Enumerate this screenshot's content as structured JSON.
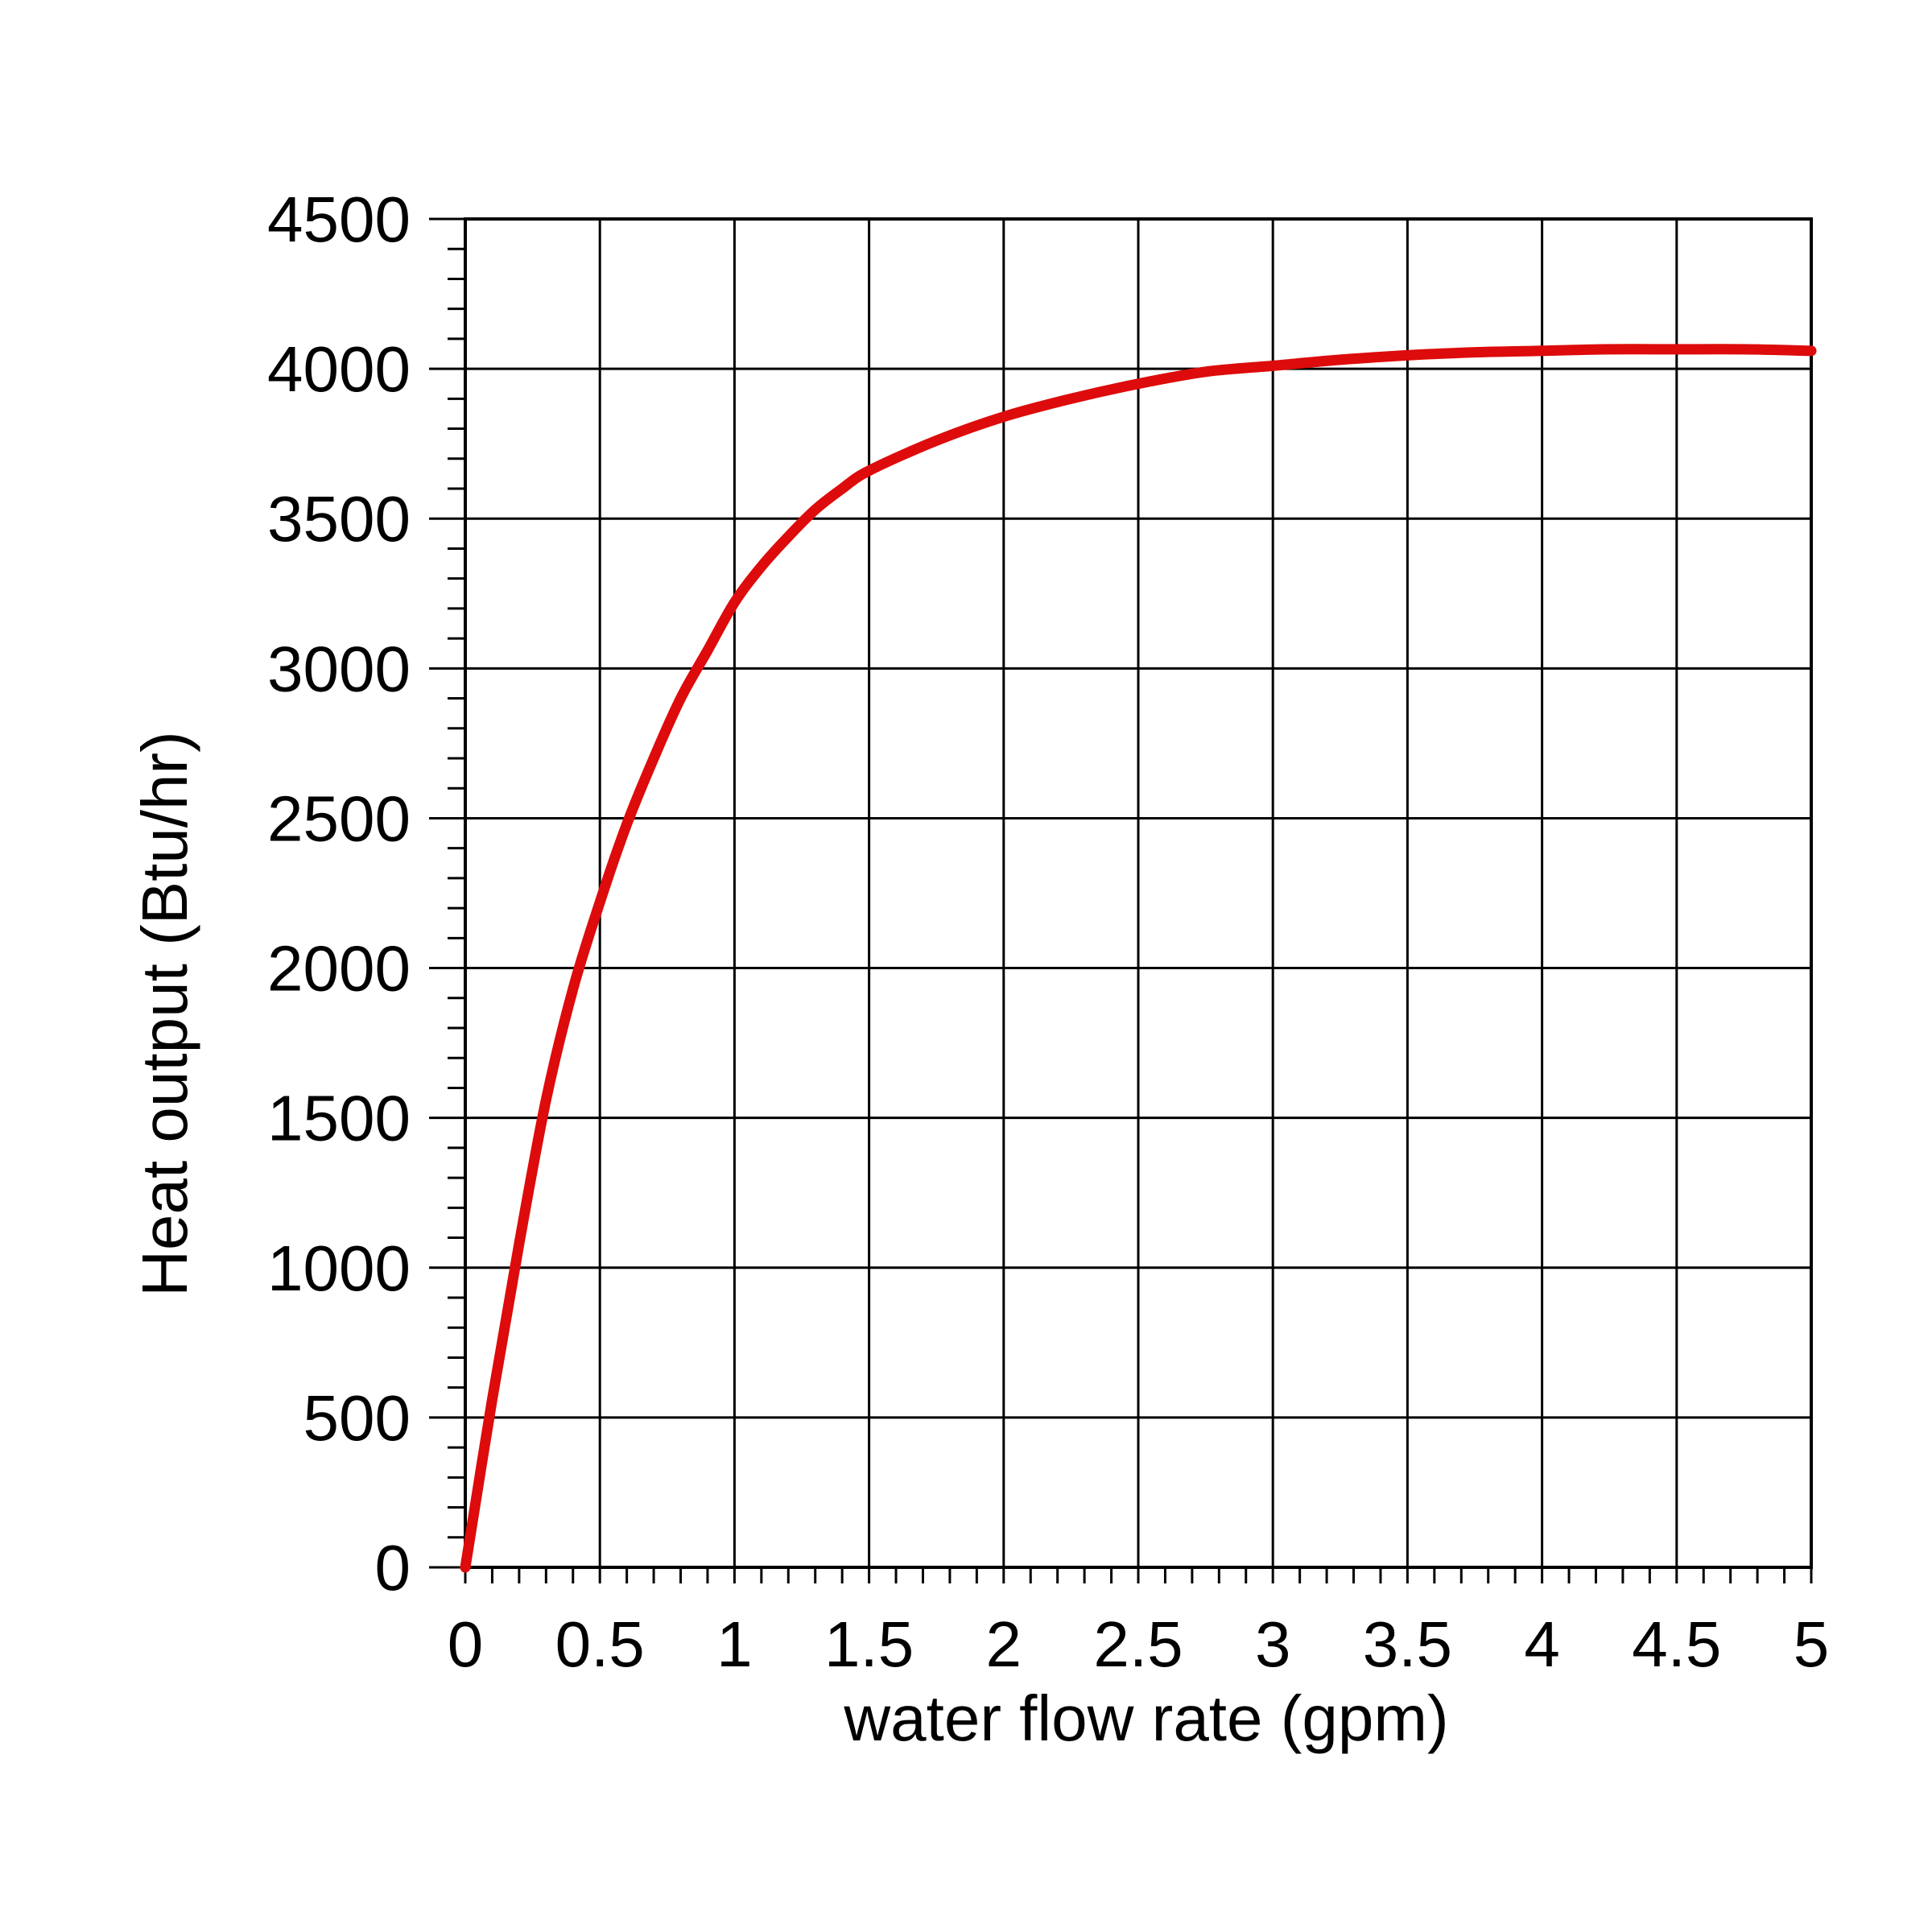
{
  "chart_data": {
    "type": "line",
    "title": "",
    "xlabel": "water flow rate (gpm)",
    "ylabel": "Heat output (Btu/hr)",
    "xlim": [
      0,
      5
    ],
    "ylim": [
      0,
      4500
    ],
    "x_ticks": [
      "0",
      "0.5",
      "1",
      "1.5",
      "2",
      "2.5",
      "3",
      "3.5",
      "4",
      "4.5",
      "5"
    ],
    "y_ticks": [
      "0",
      "500",
      "1000",
      "1500",
      "2000",
      "2500",
      "3000",
      "3500",
      "4000",
      "4500"
    ],
    "grid": true,
    "minor_ticks": true,
    "series": [
      {
        "color": "#dd0b0b",
        "x": [
          0,
          0.1,
          0.2,
          0.3,
          0.4,
          0.5,
          0.6,
          0.7,
          0.8,
          0.9,
          1.0,
          1.1,
          1.2,
          1.3,
          1.4,
          1.5,
          1.75,
          2.0,
          2.25,
          2.5,
          2.75,
          3.0,
          3.25,
          3.5,
          3.75,
          4.0,
          4.25,
          4.5,
          4.75,
          5.0
        ],
        "y": [
          0,
          560,
          1080,
          1560,
          1930,
          2220,
          2480,
          2700,
          2900,
          3060,
          3220,
          3340,
          3440,
          3530,
          3600,
          3660,
          3760,
          3840,
          3900,
          3950,
          3990,
          4010,
          4030,
          4045,
          4055,
          4060,
          4065,
          4065,
          4065,
          4060
        ]
      }
    ]
  }
}
